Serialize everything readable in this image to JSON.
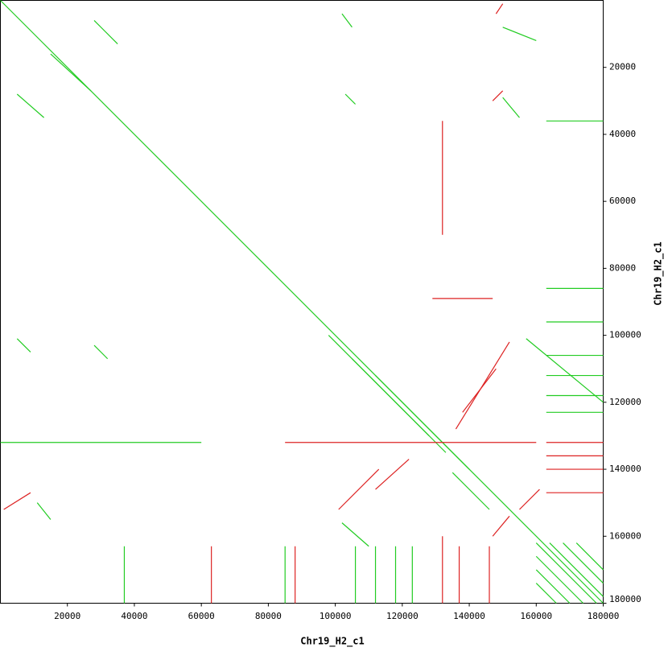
{
  "chart_data": {
    "type": "dotplot",
    "x_label": "Chr19_H2_c1",
    "y_label": "Chr19_H2_c1",
    "xlim": [
      0,
      180000
    ],
    "ylim": [
      0,
      180000
    ],
    "xticks": [
      20000,
      40000,
      60000,
      80000,
      100000,
      120000,
      140000,
      160000,
      180000
    ],
    "yticks": [
      20000,
      40000,
      60000,
      80000,
      100000,
      120000,
      140000,
      160000,
      180000
    ],
    "series": [
      {
        "color": "#22cc22",
        "segments": [
          [
            0,
            0,
            180000,
            180000
          ],
          [
            28000,
            6000,
            35000,
            13000
          ],
          [
            5000,
            28000,
            13000,
            35000
          ],
          [
            15000,
            16000,
            27000,
            27000
          ],
          [
            102000,
            4000,
            105000,
            8000
          ],
          [
            150000,
            8000,
            160000,
            12000
          ],
          [
            103000,
            28000,
            106000,
            31000
          ],
          [
            150000,
            29000,
            155000,
            35000
          ],
          [
            5000,
            101000,
            9000,
            105000
          ],
          [
            28000,
            103000,
            32000,
            107000
          ],
          [
            98000,
            100000,
            128000,
            130000
          ],
          [
            105000,
            107000,
            133000,
            135000
          ],
          [
            112000,
            112000,
            140000,
            140000
          ],
          [
            135000,
            141000,
            146000,
            152000
          ],
          [
            102000,
            156000,
            110000,
            163000
          ],
          [
            11000,
            150000,
            15000,
            155000
          ],
          [
            157000,
            101000,
            180000,
            120000
          ],
          [
            160000,
            162000,
            178000,
            180000
          ],
          [
            164000,
            162000,
            180000,
            178000
          ],
          [
            168000,
            162000,
            180000,
            174000
          ],
          [
            172000,
            162000,
            180000,
            170000
          ],
          [
            160000,
            166000,
            174000,
            180000
          ],
          [
            160000,
            170000,
            170000,
            180000
          ],
          [
            160000,
            174000,
            166000,
            180000
          ],
          [
            37000,
            163000,
            37000,
            180000
          ],
          [
            85000,
            163000,
            85000,
            180000
          ],
          [
            106000,
            163000,
            106000,
            180000
          ],
          [
            112000,
            163000,
            112000,
            180000
          ],
          [
            118000,
            163000,
            118000,
            180000
          ],
          [
            123000,
            163000,
            123000,
            180000
          ],
          [
            163000,
            86000,
            180000,
            86000
          ],
          [
            163000,
            96000,
            180000,
            96000
          ],
          [
            163000,
            106000,
            180000,
            106000
          ],
          [
            163000,
            112000,
            180000,
            112000
          ],
          [
            163000,
            118000,
            180000,
            118000
          ],
          [
            163000,
            123000,
            180000,
            123000
          ],
          [
            163000,
            36000,
            180000,
            36000
          ],
          [
            0,
            132000,
            60000,
            132000
          ]
        ]
      },
      {
        "color": "#dd2222",
        "segments": [
          [
            101000,
            152000,
            113000,
            140000
          ],
          [
            136000,
            128000,
            152000,
            102000
          ],
          [
            138000,
            123000,
            148000,
            110000
          ],
          [
            155000,
            152000,
            161000,
            146000
          ],
          [
            148000,
            4000,
            150000,
            1000
          ],
          [
            147000,
            30000,
            150000,
            27000
          ],
          [
            147000,
            160000,
            152000,
            154000
          ],
          [
            112000,
            146000,
            122000,
            137000
          ],
          [
            1000,
            152000,
            9000,
            147000
          ],
          [
            163000,
            132000,
            180000,
            132000
          ],
          [
            163000,
            136000,
            180000,
            136000
          ],
          [
            163000,
            140000,
            180000,
            140000
          ],
          [
            163000,
            147000,
            180000,
            147000
          ],
          [
            132000,
            36000,
            132000,
            70000
          ],
          [
            132000,
            160000,
            132000,
            180000
          ],
          [
            63000,
            163000,
            63000,
            180000
          ],
          [
            88000,
            163000,
            88000,
            180000
          ],
          [
            137000,
            163000,
            137000,
            180000
          ],
          [
            146000,
            163000,
            146000,
            180000
          ],
          [
            85000,
            132000,
            160000,
            132000
          ],
          [
            129000,
            89000,
            147000,
            89000
          ]
        ]
      }
    ]
  }
}
